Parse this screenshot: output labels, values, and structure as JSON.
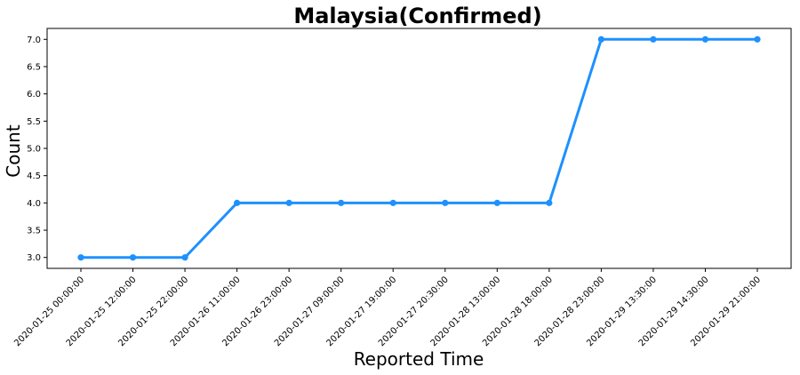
{
  "chart_data": {
    "type": "line",
    "title": "Malaysia(Confirmed)",
    "xlabel": "Reported Time",
    "ylabel": "Count",
    "categories": [
      "2020-01-25 00:00:00",
      "2020-01-25 12:00:00",
      "2020-01-25 22:00:00",
      "2020-01-26 11:00:00",
      "2020-01-26 23:00:00",
      "2020-01-27 09:00:00",
      "2020-01-27 19:00:00",
      "2020-01-27 20:30:00",
      "2020-01-28 13:00:00",
      "2020-01-28 18:00:00",
      "2020-01-28 23:00:00",
      "2020-01-29 13:30:00",
      "2020-01-29 14:30:00",
      "2020-01-29 21:00:00"
    ],
    "series": [
      {
        "values": [
          3,
          3,
          3,
          4,
          4,
          4,
          4,
          4,
          4,
          4,
          7,
          7,
          7,
          7
        ],
        "color": "#1e90ff"
      }
    ],
    "ylim": [
      2.8,
      7.2
    ],
    "yticks": [
      "3.0",
      "3.5",
      "4.0",
      "4.5",
      "5.0",
      "5.5",
      "6.0",
      "6.5",
      "7.0"
    ],
    "grid": false,
    "legend": "none"
  }
}
